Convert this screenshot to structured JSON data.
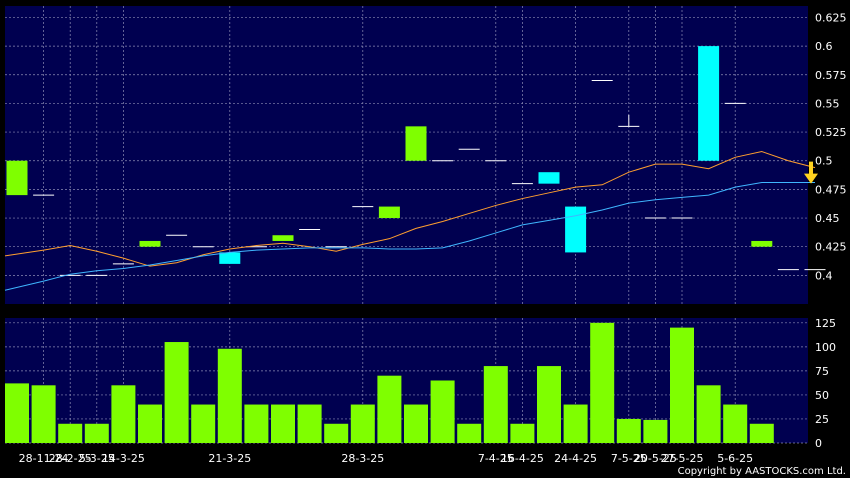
{
  "copyright": "Copyright by AASTOCKS.com Ltd.",
  "colors": {
    "background": "#000000",
    "plot_bg": "#000050",
    "grid": "#8c8cb4",
    "up": "#7fff00",
    "down": "#00ffff",
    "doji": "#ffffff",
    "volume": "#7fff00",
    "ma_fast": "#ff9f2f",
    "ma_slow": "#3fb6ff",
    "arrow": "#ffd21f"
  },
  "chart_data": [
    {
      "type": "candlestick",
      "ylim": [
        0.375,
        0.635
      ],
      "ytick_labels": [
        "0.4",
        "0.425",
        "0.45",
        "0.475",
        "0.5",
        "0.525",
        "0.55",
        "0.575",
        "0.6",
        "0.625"
      ],
      "grid": true,
      "candles": [
        {
          "o": 0.47,
          "c": 0.5,
          "h": 0.5,
          "l": 0.47
        },
        {
          "o": 0.47,
          "c": 0.47,
          "h": 0.47,
          "l": 0.47
        },
        {
          "o": 0.4,
          "c": 0.4,
          "h": 0.4,
          "l": 0.4
        },
        {
          "o": 0.4,
          "c": 0.4,
          "h": 0.4,
          "l": 0.4
        },
        {
          "o": 0.41,
          "c": 0.41,
          "h": 0.41,
          "l": 0.41
        },
        {
          "o": 0.425,
          "c": 0.43,
          "h": 0.43,
          "l": 0.425
        },
        {
          "o": 0.435,
          "c": 0.435,
          "h": 0.435,
          "l": 0.435
        },
        {
          "o": 0.425,
          "c": 0.425,
          "h": 0.425,
          "l": 0.425
        },
        {
          "o": 0.42,
          "c": 0.41,
          "h": 0.42,
          "l": 0.41
        },
        {
          "o": 0.425,
          "c": 0.425,
          "h": 0.425,
          "l": 0.425
        },
        {
          "o": 0.43,
          "c": 0.435,
          "h": 0.435,
          "l": 0.43
        },
        {
          "o": 0.44,
          "c": 0.44,
          "h": 0.44,
          "l": 0.44
        },
        {
          "o": 0.425,
          "c": 0.425,
          "h": 0.425,
          "l": 0.425
        },
        {
          "o": 0.46,
          "c": 0.46,
          "h": 0.46,
          "l": 0.46
        },
        {
          "o": 0.45,
          "c": 0.46,
          "h": 0.46,
          "l": 0.45
        },
        {
          "o": 0.5,
          "c": 0.53,
          "h": 0.53,
          "l": 0.5
        },
        {
          "o": 0.5,
          "c": 0.5,
          "h": 0.5,
          "l": 0.5
        },
        {
          "o": 0.51,
          "c": 0.51,
          "h": 0.51,
          "l": 0.51
        },
        {
          "o": 0.5,
          "c": 0.5,
          "h": 0.5,
          "l": 0.5
        },
        {
          "o": 0.48,
          "c": 0.48,
          "h": 0.48,
          "l": 0.48
        },
        {
          "o": 0.49,
          "c": 0.48,
          "h": 0.49,
          "l": 0.48
        },
        {
          "o": 0.46,
          "c": 0.42,
          "h": 0.46,
          "l": 0.42
        },
        {
          "o": 0.57,
          "c": 0.57,
          "h": 0.57,
          "l": 0.57
        },
        {
          "o": 0.53,
          "c": 0.53,
          "h": 0.54,
          "l": 0.53
        },
        {
          "o": 0.45,
          "c": 0.45,
          "h": 0.45,
          "l": 0.45
        },
        {
          "o": 0.45,
          "c": 0.45,
          "h": 0.45,
          "l": 0.45
        },
        {
          "o": 0.6,
          "c": 0.5,
          "h": 0.6,
          "l": 0.5
        },
        {
          "o": 0.55,
          "c": 0.55,
          "h": 0.55,
          "l": 0.55
        },
        {
          "o": 0.425,
          "c": 0.43,
          "h": 0.43,
          "l": 0.425
        },
        {
          "o": 0.405,
          "c": 0.405,
          "h": 0.405,
          "l": 0.405
        },
        {
          "o": 0.405,
          "c": 0.405,
          "h": 0.405,
          "l": 0.405
        }
      ],
      "series": [
        {
          "values": [
            0.417,
            0.422,
            0.426,
            0.421,
            0.415,
            0.408,
            0.411,
            0.418,
            0.423,
            0.426,
            0.428,
            0.425,
            0.421,
            0.427,
            0.432,
            0.441,
            0.447,
            0.454,
            0.461,
            0.467,
            0.472,
            0.477,
            0.479,
            0.49,
            0.497,
            0.497,
            0.493,
            0.503,
            0.508,
            0.5,
            0.494
          ]
        },
        {
          "values": [
            0.387,
            0.395,
            0.401,
            0.404,
            0.406,
            0.409,
            0.413,
            0.417,
            0.42,
            0.422,
            0.423,
            0.424,
            0.424,
            0.424,
            0.423,
            0.423,
            0.424,
            0.43,
            0.437,
            0.444,
            0.448,
            0.452,
            0.457,
            0.463,
            0.466,
            0.468,
            0.47,
            0.477,
            0.481,
            0.481,
            0.481
          ]
        }
      ],
      "annotation": {
        "type": "down-arrow",
        "value": 0.48
      }
    },
    {
      "type": "bar",
      "ylim": [
        0,
        130
      ],
      "ytick_labels": [
        "0",
        "25",
        "50",
        "75",
        "100",
        "125"
      ],
      "grid": true,
      "values": [
        62,
        60,
        20,
        20,
        60,
        40,
        105,
        40,
        98,
        40,
        40,
        40,
        20,
        40,
        70,
        40,
        65,
        20,
        80,
        20,
        80,
        40,
        125,
        25,
        24,
        120,
        60,
        40,
        20,
        0,
        0
      ]
    }
  ],
  "x_tick_labels": [
    {
      "text": "28-11-24",
      "index": 1
    },
    {
      "text": "28-2-25",
      "index": 2
    },
    {
      "text": "5-3-25",
      "index": 3
    },
    {
      "text": "14-3-25",
      "index": 4
    },
    {
      "text": "21-3-25",
      "index": 8
    },
    {
      "text": "28-3-25",
      "index": 13
    },
    {
      "text": "7-4-25",
      "index": 18
    },
    {
      "text": "16-4-25",
      "index": 19
    },
    {
      "text": "24-4-25",
      "index": 21
    },
    {
      "text": "7-5-25",
      "index": 23
    },
    {
      "text": "20-5-25",
      "index": 24
    },
    {
      "text": "27-5-25",
      "index": 25
    },
    {
      "text": "5-6-25",
      "index": 27
    }
  ]
}
